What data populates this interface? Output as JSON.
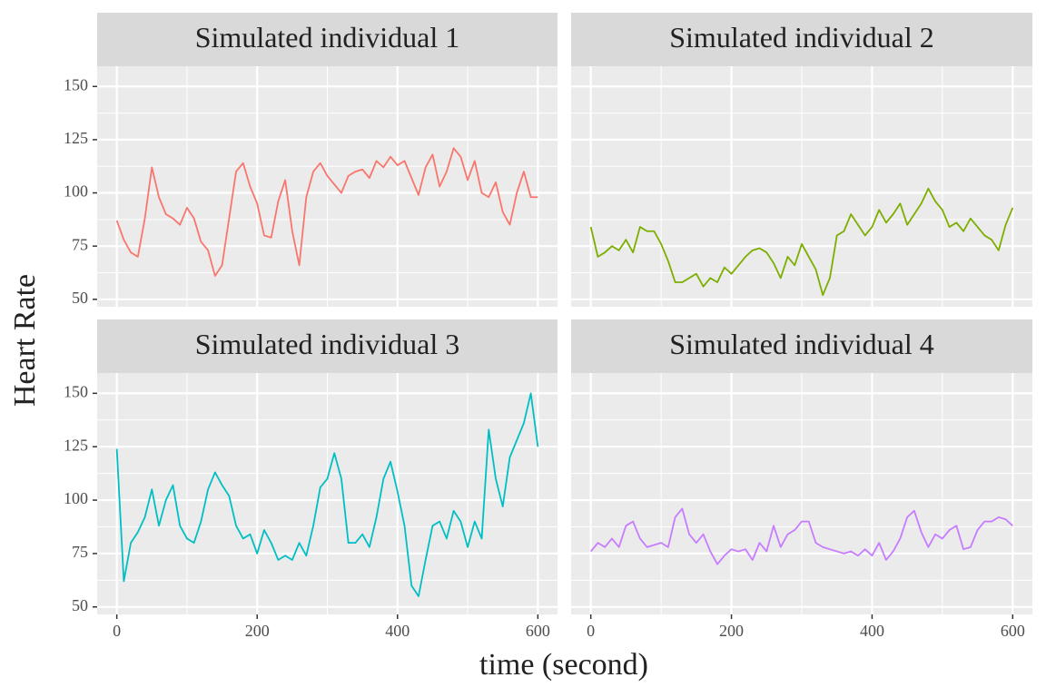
{
  "xlabel": "time (second)",
  "ylabel": "Heart Rate",
  "chart_data": [
    {
      "type": "line",
      "title": "Simulated individual 1",
      "color": "#F8766D",
      "x": [
        0,
        10,
        20,
        30,
        40,
        50,
        60,
        70,
        80,
        90,
        100,
        110,
        120,
        130,
        140,
        150,
        160,
        170,
        180,
        190,
        200,
        210,
        220,
        230,
        240,
        250,
        260,
        270,
        280,
        290,
        300,
        310,
        320,
        330,
        340,
        350,
        360,
        370,
        380,
        390,
        400,
        410,
        420,
        430,
        440,
        450,
        460,
        470,
        480,
        490,
        500,
        510,
        520,
        530,
        540,
        550,
        560,
        570,
        580,
        590,
        600
      ],
      "values": [
        87,
        78,
        72,
        70,
        88,
        112,
        98,
        90,
        88,
        85,
        93,
        88,
        77,
        73,
        61,
        66,
        88,
        110,
        114,
        103,
        95,
        80,
        79,
        96,
        106,
        82,
        66,
        98,
        110,
        114,
        108,
        104,
        100,
        108,
        110,
        111,
        107,
        115,
        112,
        117,
        113,
        115,
        107,
        99,
        112,
        118,
        103,
        110,
        121,
        117,
        106,
        115,
        100,
        98,
        105,
        91,
        85,
        100,
        110,
        98,
        98
      ],
      "xlim": [
        -28,
        628
      ],
      "ylim": [
        46.5,
        159.5
      ],
      "xticks": [
        0,
        200,
        400,
        600
      ],
      "yticks": [
        50,
        75,
        100,
        125,
        150
      ],
      "grid": true
    },
    {
      "type": "line",
      "title": "Simulated individual 2",
      "color": "#7CAE00",
      "x": [
        0,
        10,
        20,
        30,
        40,
        50,
        60,
        70,
        80,
        90,
        100,
        110,
        120,
        130,
        140,
        150,
        160,
        170,
        180,
        190,
        200,
        210,
        220,
        230,
        240,
        250,
        260,
        270,
        280,
        290,
        300,
        310,
        320,
        330,
        340,
        350,
        360,
        370,
        380,
        390,
        400,
        410,
        420,
        430,
        440,
        450,
        460,
        470,
        480,
        490,
        500,
        510,
        520,
        530,
        540,
        550,
        560,
        570,
        580,
        590,
        600
      ],
      "values": [
        84,
        70,
        72,
        75,
        73,
        78,
        72,
        84,
        82,
        82,
        76,
        68,
        58,
        58,
        60,
        62,
        56,
        60,
        58,
        65,
        62,
        66,
        70,
        73,
        74,
        72,
        67,
        60,
        70,
        66,
        76,
        70,
        64,
        52,
        60,
        80,
        82,
        90,
        85,
        80,
        84,
        92,
        86,
        90,
        95,
        85,
        90,
        95,
        102,
        96,
        92,
        84,
        86,
        82,
        88,
        84,
        80,
        78,
        73,
        85,
        93
      ],
      "xlim": [
        -28,
        628
      ],
      "ylim": [
        46.5,
        159.5
      ],
      "xticks": [
        0,
        200,
        400,
        600
      ],
      "yticks": [
        50,
        75,
        100,
        125,
        150
      ],
      "grid": true
    },
    {
      "type": "line",
      "title": "Simulated individual 3",
      "color": "#00BFC4",
      "x": [
        0,
        10,
        20,
        30,
        40,
        50,
        60,
        70,
        80,
        90,
        100,
        110,
        120,
        130,
        140,
        150,
        160,
        170,
        180,
        190,
        200,
        210,
        220,
        230,
        240,
        250,
        260,
        270,
        280,
        290,
        300,
        310,
        320,
        330,
        340,
        350,
        360,
        370,
        380,
        390,
        400,
        410,
        420,
        430,
        440,
        450,
        460,
        470,
        480,
        490,
        500,
        510,
        520,
        530,
        540,
        550,
        560,
        570,
        580,
        590,
        600
      ],
      "values": [
        124,
        62,
        80,
        85,
        92,
        105,
        88,
        100,
        107,
        88,
        82,
        80,
        90,
        105,
        113,
        107,
        102,
        88,
        82,
        84,
        75,
        86,
        80,
        72,
        74,
        72,
        80,
        74,
        88,
        106,
        110,
        122,
        110,
        80,
        80,
        84,
        78,
        92,
        110,
        118,
        104,
        88,
        60,
        55,
        72,
        88,
        90,
        82,
        95,
        90,
        78,
        90,
        82,
        133,
        110,
        97,
        120,
        128,
        136,
        150,
        125
      ],
      "xlim": [
        -28,
        628
      ],
      "ylim": [
        46.5,
        159.5
      ],
      "xticks": [
        0,
        200,
        400,
        600
      ],
      "yticks": [
        50,
        75,
        100,
        125,
        150
      ],
      "grid": true
    },
    {
      "type": "line",
      "title": "Simulated individual 4",
      "color": "#C77CFF",
      "x": [
        0,
        10,
        20,
        30,
        40,
        50,
        60,
        70,
        80,
        90,
        100,
        110,
        120,
        130,
        140,
        150,
        160,
        170,
        180,
        190,
        200,
        210,
        220,
        230,
        240,
        250,
        260,
        270,
        280,
        290,
        300,
        310,
        320,
        330,
        340,
        350,
        360,
        370,
        380,
        390,
        400,
        410,
        420,
        430,
        440,
        450,
        460,
        470,
        480,
        490,
        500,
        510,
        520,
        530,
        540,
        550,
        560,
        570,
        580,
        590,
        600
      ],
      "values": [
        76,
        80,
        78,
        82,
        78,
        88,
        90,
        82,
        78,
        79,
        80,
        78,
        92,
        96,
        84,
        80,
        84,
        76,
        70,
        74,
        77,
        76,
        77,
        72,
        80,
        76,
        88,
        78,
        84,
        86,
        90,
        90,
        80,
        78,
        77,
        76,
        75,
        76,
        74,
        77,
        74,
        80,
        72,
        76,
        82,
        92,
        95,
        85,
        78,
        84,
        82,
        86,
        88,
        77,
        78,
        86,
        90,
        90,
        92,
        91,
        88
      ],
      "xlim": [
        -28,
        628
      ],
      "ylim": [
        46.5,
        159.5
      ],
      "xticks": [
        0,
        200,
        400,
        600
      ],
      "yticks": [
        50,
        75,
        100,
        125,
        150
      ],
      "grid": true
    }
  ]
}
